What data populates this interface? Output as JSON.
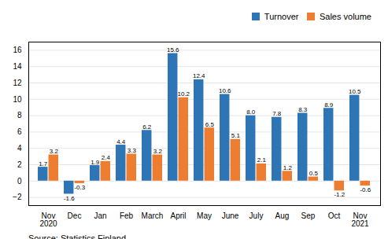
{
  "chart_data": {
    "type": "bar",
    "categories": [
      "Nov\n2020",
      "Dec",
      "Jan",
      "Feb",
      "March",
      "April",
      "May",
      "June",
      "July",
      "Aug",
      "Sep",
      "Oct",
      "Nov\n2021"
    ],
    "series": [
      {
        "name": "Turnover",
        "color": "#2E75B6",
        "values": [
          1.7,
          -1.6,
          1.9,
          4.4,
          6.2,
          15.6,
          12.4,
          10.6,
          8.0,
          7.8,
          8.3,
          8.9,
          10.5
        ],
        "value_labels": [
          "1.7",
          "-1.6",
          "1.9",
          "4.4",
          "6.2",
          "15.6",
          "12.4",
          "10.6",
          "8.0",
          "7.8",
          "8.3",
          "8.9",
          "10.5"
        ]
      },
      {
        "name": "Sales volume",
        "color": "#ED7D31",
        "values": [
          3.2,
          -0.3,
          2.4,
          3.3,
          3.2,
          10.2,
          6.5,
          5.1,
          2.1,
          1.2,
          0.5,
          -1.2,
          -0.6
        ],
        "value_labels": [
          "3.2",
          "-0.3",
          "2.4",
          "3.3",
          "3.2",
          "10.2",
          "6.5",
          "5.1",
          "2.1",
          "1.2",
          "0.5",
          "-1.2",
          "-0.6"
        ]
      }
    ],
    "ylim": [
      -3,
      17
    ],
    "yticks": [
      -2,
      0,
      2,
      4,
      6,
      8,
      10,
      12,
      14,
      16
    ],
    "grid": true,
    "legend": "upper right",
    "data_labels": true,
    "annotations": [
      "Source: Statistics Finland"
    ]
  }
}
